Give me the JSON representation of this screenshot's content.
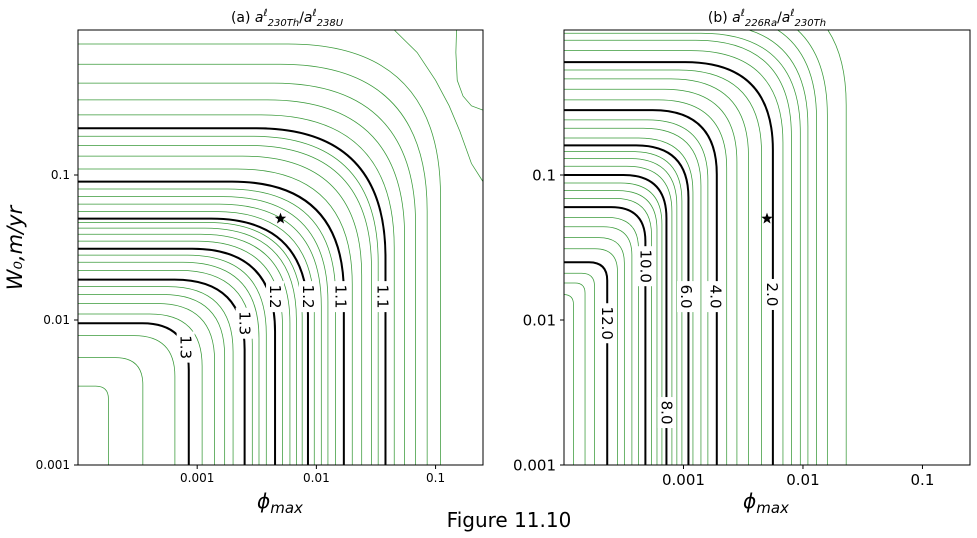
{
  "caption": "Figure 11.10",
  "ylabel": "W₀,m/yr",
  "chart_data": [
    {
      "type": "contour",
      "panel": "a",
      "title_prefix": "(a) ",
      "title_num": "a",
      "title_num_sub": "230Th",
      "title_den": "a",
      "title_den_sub": "238U",
      "title_sup": "ℓ",
      "xlabel": "ϕ",
      "xlabel_sub": "max",
      "xscale": "log",
      "yscale": "log",
      "xlim": [
        0.0001,
        0.25
      ],
      "ylim": [
        0.001,
        1.0
      ],
      "xticks": [
        0.001,
        0.01,
        0.1
      ],
      "xticklabels": [
        "0.001",
        "0.01",
        "0.1"
      ],
      "yticks": [
        0.001,
        0.01,
        0.1
      ],
      "yticklabels": [
        "0.001",
        "0.01",
        "0.1"
      ],
      "grid": false,
      "marker": {
        "symbol": "star",
        "x": 0.005,
        "y": 0.05
      },
      "major_contours": [
        {
          "x_asym": 0.00085,
          "y_asym": 0.0095,
          "label": "1.3",
          "label_at": [
            0.0008,
            0.0065
          ]
        },
        {
          "x_asym": 0.0025,
          "y_asym": 0.019,
          "label": "1.3",
          "label_at": [
            0.0025,
            0.0095
          ]
        },
        {
          "x_asym": 0.0045,
          "y_asym": 0.031,
          "label": "1.2",
          "label_at": [
            0.0045,
            0.0145
          ]
        },
        {
          "x_asym": 0.0085,
          "y_asym": 0.05,
          "label": "1.2",
          "label_at": [
            0.0085,
            0.0145
          ]
        },
        {
          "x_asym": 0.017,
          "y_asym": 0.09,
          "label": "1.1",
          "label_at": [
            0.016,
            0.0145
          ]
        },
        {
          "x_asym": 0.038,
          "y_asym": 0.21,
          "label": "1.1",
          "label_at": [
            0.036,
            0.0145
          ]
        }
      ],
      "minor_contours": [
        {
          "x_asym": 0.00018,
          "y_asym": 0.0035
        },
        {
          "x_asym": 0.00035,
          "y_asym": 0.0055
        },
        {
          "x_asym": 0.00065,
          "y_asym": 0.0078
        },
        {
          "x_asym": 0.0011,
          "y_asym": 0.011
        },
        {
          "x_asym": 0.0014,
          "y_asym": 0.013
        },
        {
          "x_asym": 0.0017,
          "y_asym": 0.015
        },
        {
          "x_asym": 0.002,
          "y_asym": 0.017
        },
        {
          "x_asym": 0.0029,
          "y_asym": 0.022
        },
        {
          "x_asym": 0.0033,
          "y_asym": 0.025
        },
        {
          "x_asym": 0.0038,
          "y_asym": 0.028
        },
        {
          "x_asym": 0.0052,
          "y_asym": 0.035
        },
        {
          "x_asym": 0.006,
          "y_asym": 0.039
        },
        {
          "x_asym": 0.0068,
          "y_asym": 0.043
        },
        {
          "x_asym": 0.0076,
          "y_asym": 0.047
        },
        {
          "x_asym": 0.0096,
          "y_asym": 0.056
        },
        {
          "x_asym": 0.011,
          "y_asym": 0.063
        },
        {
          "x_asym": 0.0125,
          "y_asym": 0.071
        },
        {
          "x_asym": 0.0145,
          "y_asym": 0.08
        },
        {
          "x_asym": 0.02,
          "y_asym": 0.11
        },
        {
          "x_asym": 0.024,
          "y_asym": 0.135
        },
        {
          "x_asym": 0.029,
          "y_asym": 0.16
        },
        {
          "x_asym": 0.033,
          "y_asym": 0.185
        },
        {
          "x_asym": 0.045,
          "y_asym": 0.26
        },
        {
          "x_asym": 0.055,
          "y_asym": 0.33
        },
        {
          "x_asym": 0.068,
          "y_asym": 0.43
        },
        {
          "x_asym": 0.085,
          "y_asym": 0.58
        },
        {
          "x_asym": 0.11,
          "y_asym": 0.8
        }
      ],
      "extra_curves": [
        {
          "points": [
            [
              0.045,
              1.0
            ],
            [
              0.07,
              0.7
            ],
            [
              0.1,
              0.45
            ],
            [
              0.13,
              0.3
            ],
            [
              0.16,
              0.2
            ],
            [
              0.2,
              0.12
            ],
            [
              0.25,
              0.09
            ]
          ]
        },
        {
          "points": [
            [
              0.15,
              1.0
            ],
            [
              0.148,
              0.7
            ],
            [
              0.152,
              0.45
            ],
            [
              0.17,
              0.35
            ],
            [
              0.2,
              0.3
            ],
            [
              0.25,
              0.28
            ]
          ]
        }
      ]
    },
    {
      "type": "contour",
      "panel": "b",
      "title_prefix": "(b) ",
      "title_num": "a",
      "title_num_sub": "226Ra",
      "title_den": "a",
      "title_den_sub": "230Th",
      "title_sup": "ℓ",
      "xlabel": "ϕ",
      "xlabel_sub": "max",
      "xscale": "log",
      "yscale": "log",
      "xlim": [
        0.0001,
        0.25
      ],
      "ylim": [
        0.001,
        1.0
      ],
      "xticks": [
        0.001,
        0.01,
        0.1
      ],
      "xticklabels": [
        "0.001",
        "0.01",
        "0.1"
      ],
      "yticks": [
        0.001,
        0.01,
        0.1
      ],
      "yticklabels": [
        "0.001",
        "0.01",
        "0.1"
      ],
      "grid": false,
      "marker": {
        "symbol": "star",
        "x": 0.005,
        "y": 0.05
      },
      "major_contours": [
        {
          "x_asym": 0.00023,
          "y_asym": 0.025,
          "label": "12.0",
          "label_at": [
            0.00023,
            0.0095
          ]
        },
        {
          "x_asym": 0.00048,
          "y_asym": 0.06,
          "label": "10.0",
          "label_at": [
            0.00048,
            0.0235
          ]
        },
        {
          "x_asym": 0.00072,
          "y_asym": 0.1,
          "label": "8.0",
          "label_at": [
            0.00072,
            0.0023
          ]
        },
        {
          "x_asym": 0.0011,
          "y_asym": 0.16,
          "label": "6.0",
          "label_at": [
            0.00105,
            0.0145
          ]
        },
        {
          "x_asym": 0.0019,
          "y_asym": 0.28,
          "label": "4.0",
          "label_at": [
            0.00185,
            0.0145
          ]
        },
        {
          "x_asym": 0.0056,
          "y_asym": 0.6,
          "label": "2.0",
          "label_at": [
            0.0055,
            0.015
          ]
        }
      ],
      "minor_contours": [
        {
          "x_asym": 0.00012,
          "y_asym": 0.015
        },
        {
          "x_asym": 0.00015,
          "y_asym": 0.018
        },
        {
          "x_asym": 0.00018,
          "y_asym": 0.021
        },
        {
          "x_asym": 0.00028,
          "y_asym": 0.031
        },
        {
          "x_asym": 0.00032,
          "y_asym": 0.037
        },
        {
          "x_asym": 0.00037,
          "y_asym": 0.044
        },
        {
          "x_asym": 0.00042,
          "y_asym": 0.051
        },
        {
          "x_asym": 0.00054,
          "y_asym": 0.069
        },
        {
          "x_asym": 0.0006,
          "y_asym": 0.078
        },
        {
          "x_asym": 0.00066,
          "y_asym": 0.088
        },
        {
          "x_asym": 0.0008,
          "y_asym": 0.115
        },
        {
          "x_asym": 0.00088,
          "y_asym": 0.13
        },
        {
          "x_asym": 0.00097,
          "y_asym": 0.145
        },
        {
          "x_asym": 0.0012,
          "y_asym": 0.18
        },
        {
          "x_asym": 0.0014,
          "y_asym": 0.21
        },
        {
          "x_asym": 0.0016,
          "y_asym": 0.24
        },
        {
          "x_asym": 0.0023,
          "y_asym": 0.33
        },
        {
          "x_asym": 0.0028,
          "y_asym": 0.39
        },
        {
          "x_asym": 0.0035,
          "y_asym": 0.46
        },
        {
          "x_asym": 0.0045,
          "y_asym": 0.53
        },
        {
          "x_asym": 0.0068,
          "y_asym": 0.72
        },
        {
          "x_asym": 0.008,
          "y_asym": 0.85
        },
        {
          "x_asym": 0.0095,
          "y_asym": 0.95
        },
        {
          "x_asym": 0.011,
          "y_asym": 1.1
        },
        {
          "x_asym": 0.013,
          "y_asym": 1.3
        },
        {
          "x_asym": 0.016,
          "y_asym": 1.5
        },
        {
          "x_asym": 0.023,
          "y_asym": 2.0
        }
      ],
      "extra_curves": []
    }
  ]
}
